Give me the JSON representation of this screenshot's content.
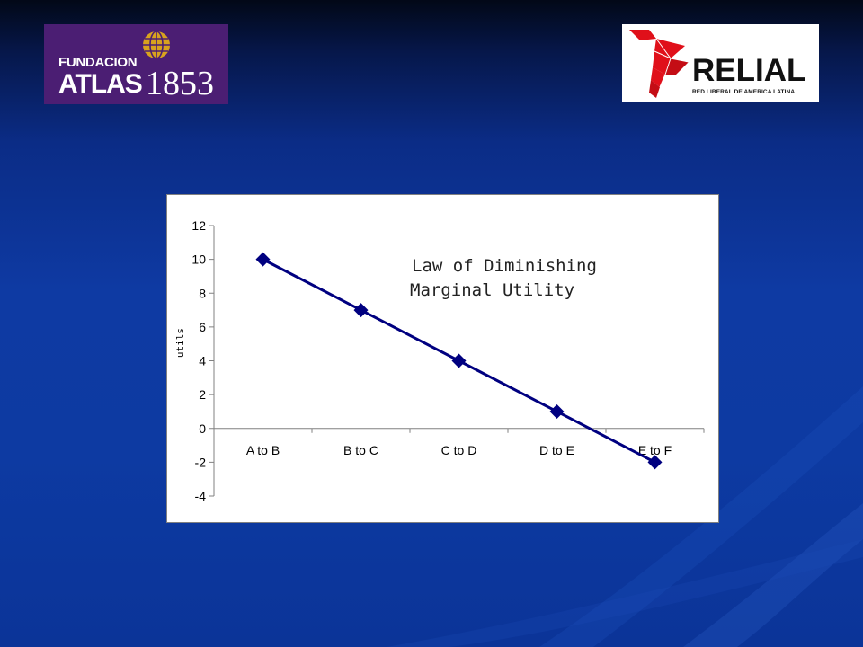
{
  "logos": {
    "left": {
      "line1": "FUNDACION",
      "line2": "ATLAS",
      "year": "1853",
      "icon": "globe-icon",
      "bg": "#4b1e73"
    },
    "right": {
      "name": "RELIAL",
      "subtitle": "RED LIBERAL DE AMERICA LATINA",
      "icon": "relial-emblem-icon",
      "accent": "#e0101a"
    }
  },
  "chart_data": {
    "type": "line",
    "title": "",
    "annotation": [
      "Law of Diminishing",
      "Marginal Utility"
    ],
    "xlabel": "",
    "ylabel": "utils",
    "categories": [
      "A to B",
      "B to C",
      "C to D",
      "D to E",
      "E to F"
    ],
    "series": [
      {
        "values": [
          10,
          7,
          4,
          1,
          -2
        ],
        "color": "#000080",
        "marker": "diamond"
      }
    ],
    "ylim": [
      -4,
      12
    ],
    "yticks": [
      12,
      10,
      8,
      6,
      4,
      2,
      0,
      -2,
      -4
    ],
    "grid": false,
    "legend": "none"
  }
}
